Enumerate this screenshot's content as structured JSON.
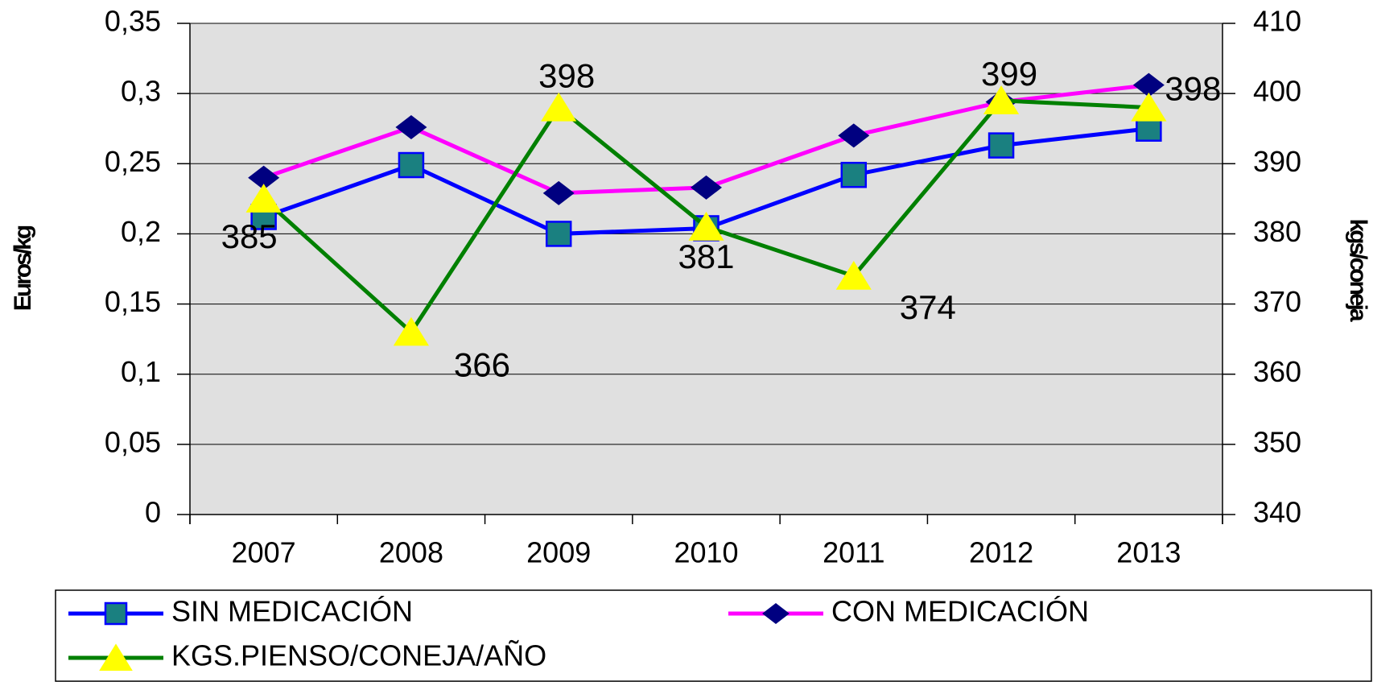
{
  "chart_data": {
    "type": "line",
    "y_label": "Euros/kg",
    "y2_label": "kgs/coneja",
    "categories": [
      "2007",
      "2008",
      "2009",
      "2010",
      "2011",
      "2012",
      "2013"
    ],
    "ylim": [
      0,
      0.35
    ],
    "yticks": [
      0,
      {
        "value": 0.05,
        "label": "0,05"
      },
      {
        "value": 0.1,
        "label": "0,1"
      },
      {
        "value": 0.15,
        "label": "0,15"
      },
      {
        "value": 0.2,
        "label": "0,2"
      },
      {
        "value": 0.25,
        "label": "0,25"
      },
      {
        "value": 0.3,
        "label": "0,3"
      },
      {
        "value": 0.35,
        "label": "0,35"
      }
    ],
    "y2lim": [
      340,
      410
    ],
    "y2ticks": [
      340,
      350,
      360,
      370,
      380,
      390,
      400,
      410
    ],
    "grid": true,
    "legend": "bottom",
    "series": [
      {
        "name": "SIN MEDICACIÓN",
        "color": "#0000ff",
        "marker": "square",
        "values": [
          0.212,
          0.249,
          0.2,
          0.204,
          0.242,
          0.263,
          0.275
        ]
      },
      {
        "name": "CON MEDICACIÓN",
        "color": "#ff00ff",
        "marker": "diamond",
        "values": [
          0.24,
          0.276,
          0.229,
          0.233,
          0.27,
          0.294,
          0.306
        ]
      },
      {
        "name": "KGS.PIENSO/CONEJA/AÑO",
        "color": "#008000",
        "marker": "triangle",
        "axis": "y2",
        "values": [
          385,
          366,
          398,
          381,
          374,
          399,
          398
        ]
      }
    ]
  }
}
